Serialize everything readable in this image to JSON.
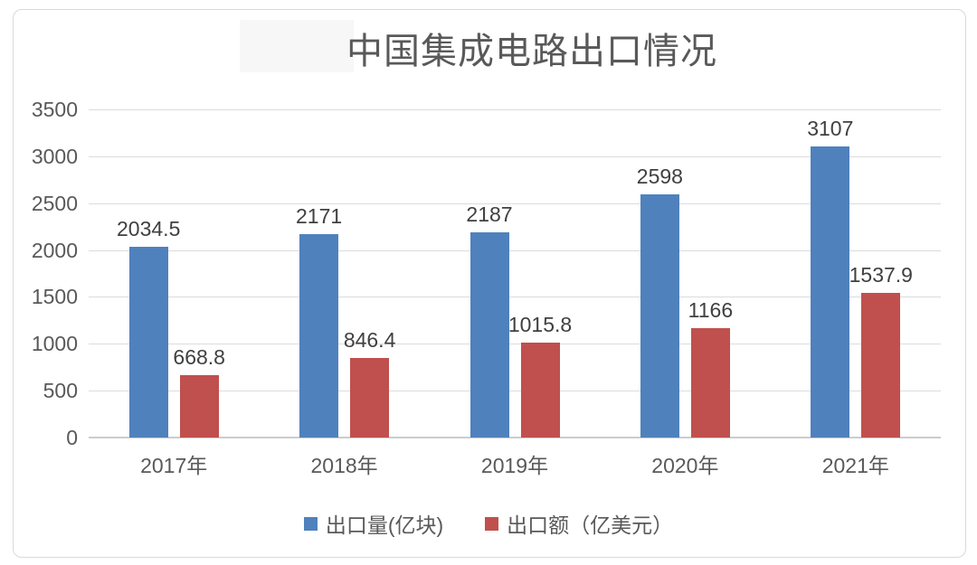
{
  "chart_data": {
    "type": "bar",
    "title": "中国集成电路出口情况",
    "categories": [
      "2017年",
      "2018年",
      "2019年",
      "2020年",
      "2021年"
    ],
    "series": [
      {
        "key": "export-volume",
        "name": "出口量(亿块)",
        "color": "#4F81BD",
        "values": [
          2034.5,
          2171,
          2187,
          2598,
          3107
        ],
        "labels": [
          "2034.5",
          "2171",
          "2187",
          "2598",
          "3107"
        ]
      },
      {
        "key": "export-value",
        "name": "出口额（亿美元）",
        "color": "#C0504D",
        "values": [
          668.8,
          846.4,
          1015.8,
          1166,
          1537.9
        ],
        "labels": [
          "668.8",
          "846.4",
          "1015.8",
          "1166",
          "1537.9"
        ]
      }
    ],
    "xlabel": "",
    "ylabel": "",
    "ylim": [
      0,
      3500
    ],
    "yticks": [
      0,
      500,
      1000,
      1500,
      2000,
      2500,
      3000,
      3500
    ],
    "grid": true,
    "legend_position": "bottom"
  },
  "colors": {
    "series1": "#4F81BD",
    "series2": "#C0504D",
    "gridline": "#DCDCDC",
    "axis_line": "#CCCCCC",
    "tick_text": "#595959",
    "data_label_text": "#404040",
    "title_text": "#595959",
    "frame_border": "#D9D9D9",
    "background": "#FFFFFF"
  }
}
